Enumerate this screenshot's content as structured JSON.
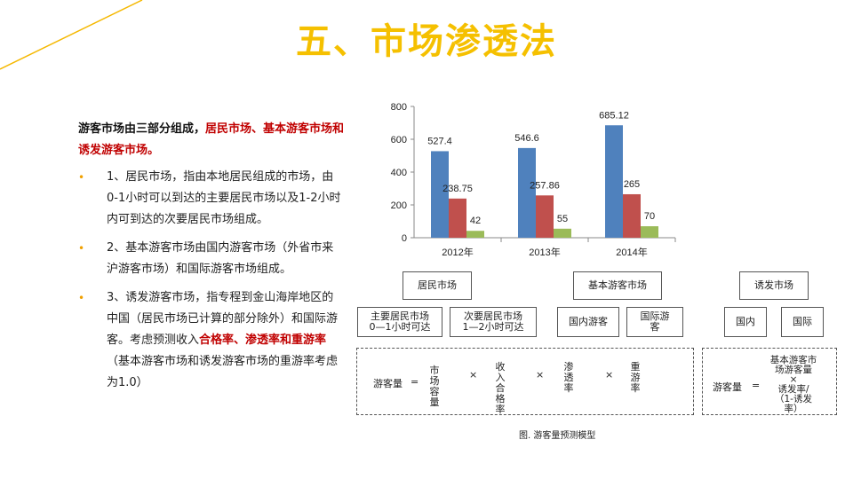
{
  "slide": {
    "title": "五、市场渗透法",
    "intro_plain": "游客市场由三部分组成，",
    "intro_red": "居民市场、基本游客市场和诱发游客市场。",
    "bullet1": "1、居民市场，指由本地居民组成的市场，由0-1小时可以到达的主要居民市场以及1-2小时内可到达的次要居民市场组成。",
    "bullet2": "2、基本游客市场由国内游客市场（外省市来沪游客市场）和国际游客市场组成。",
    "bullet3_a": "3、诱发游客市场，指专程到金山海岸地区的中国（居民市场已计算的部分除外）和国际游客。考虑预测收入",
    "bullet3_red": "合格率、渗透率和重游率",
    "bullet3_b": "（基本游客市场和诱发游客市场的重游率考虑为1.0）"
  },
  "chart_data": {
    "type": "bar",
    "categories": [
      "2012年",
      "2013年",
      "2014年"
    ],
    "series": [
      {
        "values": [
          527.4,
          546.6,
          685.12
        ],
        "color": "#4f81bd"
      },
      {
        "values": [
          238.75,
          257.86,
          265
        ],
        "color": "#c0504d"
      },
      {
        "values": [
          42,
          55,
          70
        ],
        "color": "#9bbb59"
      }
    ],
    "ylim": [
      0,
      800
    ],
    "yticks": [
      0,
      200,
      400,
      600,
      800
    ],
    "grid": false
  },
  "diagram": {
    "resident_market": "居民市场",
    "basic_market": "基本游客市场",
    "induced_market": "诱发市场",
    "primary_resident": "主要居民市场\n0—1小时可达",
    "secondary_resident": "次要居民市场\n1—2小时可达",
    "domestic_tourist": "国内游客",
    "intl_tourist": "国际游\n客",
    "domestic": "国内",
    "international": "国际",
    "formula1": {
      "lhs": "游客量",
      "eq": "=",
      "t1": "市场容量",
      "x1": "×",
      "t2": "收入合格率",
      "x2": "×",
      "t3": "渗透率",
      "x3": "×",
      "t4": "重游率"
    },
    "formula2": {
      "lhs": "游客量",
      "eq": "=",
      "rhs": "基本游客市\n场游客量\n×\n诱发率/\n（1-诱发\n率）"
    },
    "caption": "图. 游客量预测模型"
  }
}
